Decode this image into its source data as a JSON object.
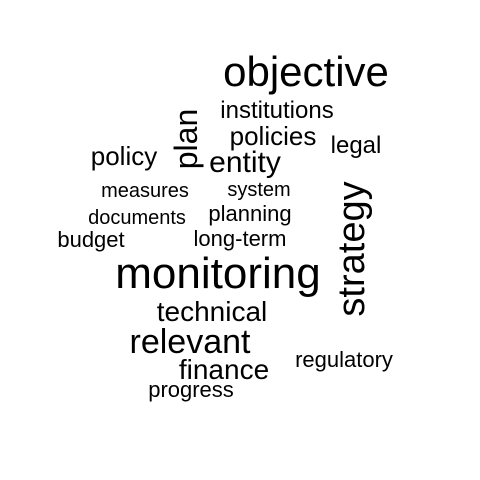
{
  "word_cloud": {
    "text_color": "#000000",
    "background": "#ffffff",
    "words": [
      {
        "text": "objective"
      },
      {
        "text": "institutions"
      },
      {
        "text": "plan"
      },
      {
        "text": "policies"
      },
      {
        "text": "legal"
      },
      {
        "text": "policy"
      },
      {
        "text": "entity"
      },
      {
        "text": "strategy"
      },
      {
        "text": "measures"
      },
      {
        "text": "system"
      },
      {
        "text": "documents"
      },
      {
        "text": "planning"
      },
      {
        "text": "budget"
      },
      {
        "text": "long-term"
      },
      {
        "text": "monitoring"
      },
      {
        "text": "technical"
      },
      {
        "text": "relevant"
      },
      {
        "text": "finance"
      },
      {
        "text": "regulatory"
      },
      {
        "text": "progress"
      }
    ]
  }
}
